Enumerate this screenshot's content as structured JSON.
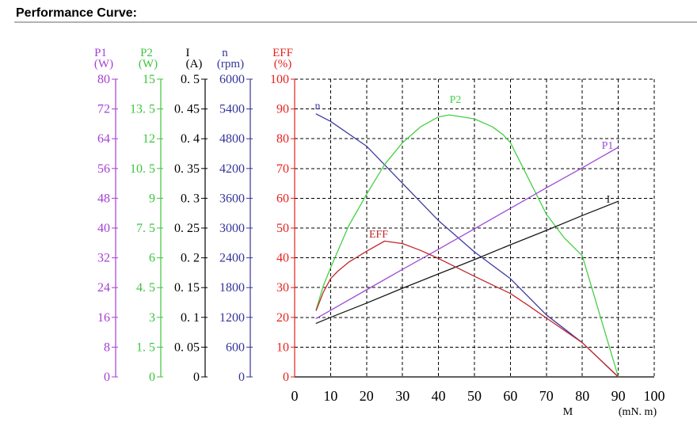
{
  "chart_data": {
    "type": "line",
    "title": "Performance Curve:",
    "grid": true,
    "x_axis": {
      "label": "M",
      "unit": "(mN. m)",
      "range": [
        0,
        100
      ],
      "ticks": [
        "0",
        "10",
        "20",
        "30",
        "40",
        "50",
        "60",
        "70",
        "80",
        "90",
        "100"
      ]
    },
    "y_axes": [
      {
        "label": "P1",
        "unit": "(W)",
        "color": "#a43fd4",
        "range": [
          0,
          80
        ],
        "ticks": [
          "0",
          "8",
          "16",
          "24",
          "32",
          "40",
          "48",
          "56",
          "64",
          "72",
          "80"
        ]
      },
      {
        "label": "P2",
        "unit": "(W)",
        "color": "#3ec43e",
        "range": [
          0,
          15
        ],
        "ticks": [
          "0",
          "1. 5",
          "3",
          "4. 5",
          "6",
          "7. 5",
          "9",
          "10. 5",
          "12",
          "13. 5",
          "15"
        ]
      },
      {
        "label": "I",
        "unit": "(A)",
        "color": "#000000",
        "range": [
          0,
          0.5
        ],
        "ticks": [
          "0",
          "0. 05",
          "0. 1",
          "0. 15",
          "0. 2",
          "0. 25",
          "0. 3",
          "0. 35",
          "0. 4",
          "0. 45",
          "0. 5"
        ]
      },
      {
        "label": "n",
        "unit": "(rpm)",
        "color": "#35359a",
        "range": [
          0,
          6000
        ],
        "ticks": [
          "0",
          "600",
          "1200",
          "1800",
          "2400",
          "3000",
          "3600",
          "4200",
          "4800",
          "5400",
          "6000"
        ]
      },
      {
        "label": "EFF",
        "unit": "(%)",
        "color": "#e5221e",
        "range": [
          0,
          100
        ],
        "ticks": [
          "0",
          "10",
          "20",
          "30",
          "40",
          "50",
          "60",
          "70",
          "80",
          "90",
          "100"
        ]
      }
    ],
    "series": [
      {
        "name": "n",
        "axis": 3,
        "color": "#3c3ca0",
        "x": [
          6,
          10,
          20,
          30,
          40,
          50,
          60,
          70,
          80,
          90
        ],
        "y": [
          5300,
          5150,
          4650,
          3900,
          3150,
          2520,
          1980,
          1250,
          690,
          0
        ]
      },
      {
        "name": "P2",
        "axis": 1,
        "color": "#44d044",
        "x": [
          6,
          8,
          10,
          15,
          20,
          25,
          30,
          35,
          40,
          43,
          50,
          55,
          58,
          60,
          65,
          70,
          75,
          80,
          90
        ],
        "y": [
          3.4,
          4.6,
          5.5,
          7.6,
          9.2,
          10.7,
          11.8,
          12.6,
          13.1,
          13.2,
          13.0,
          12.6,
          12.2,
          11.8,
          10.0,
          8.2,
          7.0,
          6.1,
          0
        ]
      },
      {
        "name": "P1",
        "axis": 0,
        "color": "#9d4bd6",
        "x": [
          6,
          10,
          20,
          30,
          40,
          50,
          60,
          70,
          80,
          90
        ],
        "y": [
          15.7,
          17.9,
          23.4,
          28.9,
          34.3,
          39.8,
          45.3,
          50.8,
          56.2,
          61.7
        ]
      },
      {
        "name": "I",
        "axis": 2,
        "color": "#1a1a1a",
        "x": [
          6,
          10,
          20,
          30,
          40,
          50,
          60,
          70,
          80,
          90
        ],
        "y": [
          0.09,
          0.1,
          0.124,
          0.149,
          0.173,
          0.197,
          0.222,
          0.246,
          0.271,
          0.295
        ]
      },
      {
        "name": "EFF",
        "axis": 4,
        "color": "#c0282a",
        "x": [
          6,
          8,
          10,
          12,
          15,
          20,
          25,
          30,
          35,
          40,
          50,
          60,
          65,
          70,
          80,
          90
        ],
        "y": [
          22.3,
          28.5,
          33.0,
          35.5,
          38.5,
          42.2,
          45.6,
          44.8,
          42.5,
          39.8,
          33.8,
          28.0,
          24.0,
          19.8,
          11.5,
          0
        ]
      }
    ]
  }
}
